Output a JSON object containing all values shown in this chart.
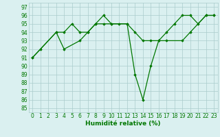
{
  "title": "",
  "xlabel": "Humidité relative (%)",
  "ylabel": "",
  "bg_color": "#daf0f0",
  "grid_color": "#aacccc",
  "line_color": "#007700",
  "line1_x": [
    0,
    1,
    3,
    4,
    5,
    6,
    7,
    8,
    9,
    10,
    11,
    12,
    13,
    14,
    15,
    16,
    17,
    18,
    19,
    20,
    21,
    22,
    23
  ],
  "line1_y": [
    91,
    92,
    94,
    94,
    95,
    94,
    94,
    95,
    95,
    95,
    95,
    95,
    94,
    93,
    93,
    93,
    94,
    95,
    96,
    96,
    95,
    96,
    96
  ],
  "line2_x": [
    0,
    3,
    4,
    6,
    7,
    8,
    9,
    10,
    12,
    13,
    14,
    15,
    16,
    17,
    19,
    20,
    22,
    23
  ],
  "line2_y": [
    91,
    94,
    92,
    93,
    94,
    95,
    96,
    95,
    95,
    89,
    86,
    90,
    93,
    93,
    93,
    94,
    96,
    96
  ],
  "xlim": [
    -0.5,
    23.5
  ],
  "ylim": [
    84.5,
    97.5
  ],
  "yticks": [
    85,
    86,
    87,
    88,
    89,
    90,
    91,
    92,
    93,
    94,
    95,
    96,
    97
  ],
  "xticks": [
    0,
    1,
    2,
    3,
    4,
    5,
    6,
    7,
    8,
    9,
    10,
    11,
    12,
    13,
    14,
    15,
    16,
    17,
    18,
    19,
    20,
    21,
    22,
    23
  ],
  "tick_fontsize": 5.5,
  "xlabel_fontsize": 6.5
}
